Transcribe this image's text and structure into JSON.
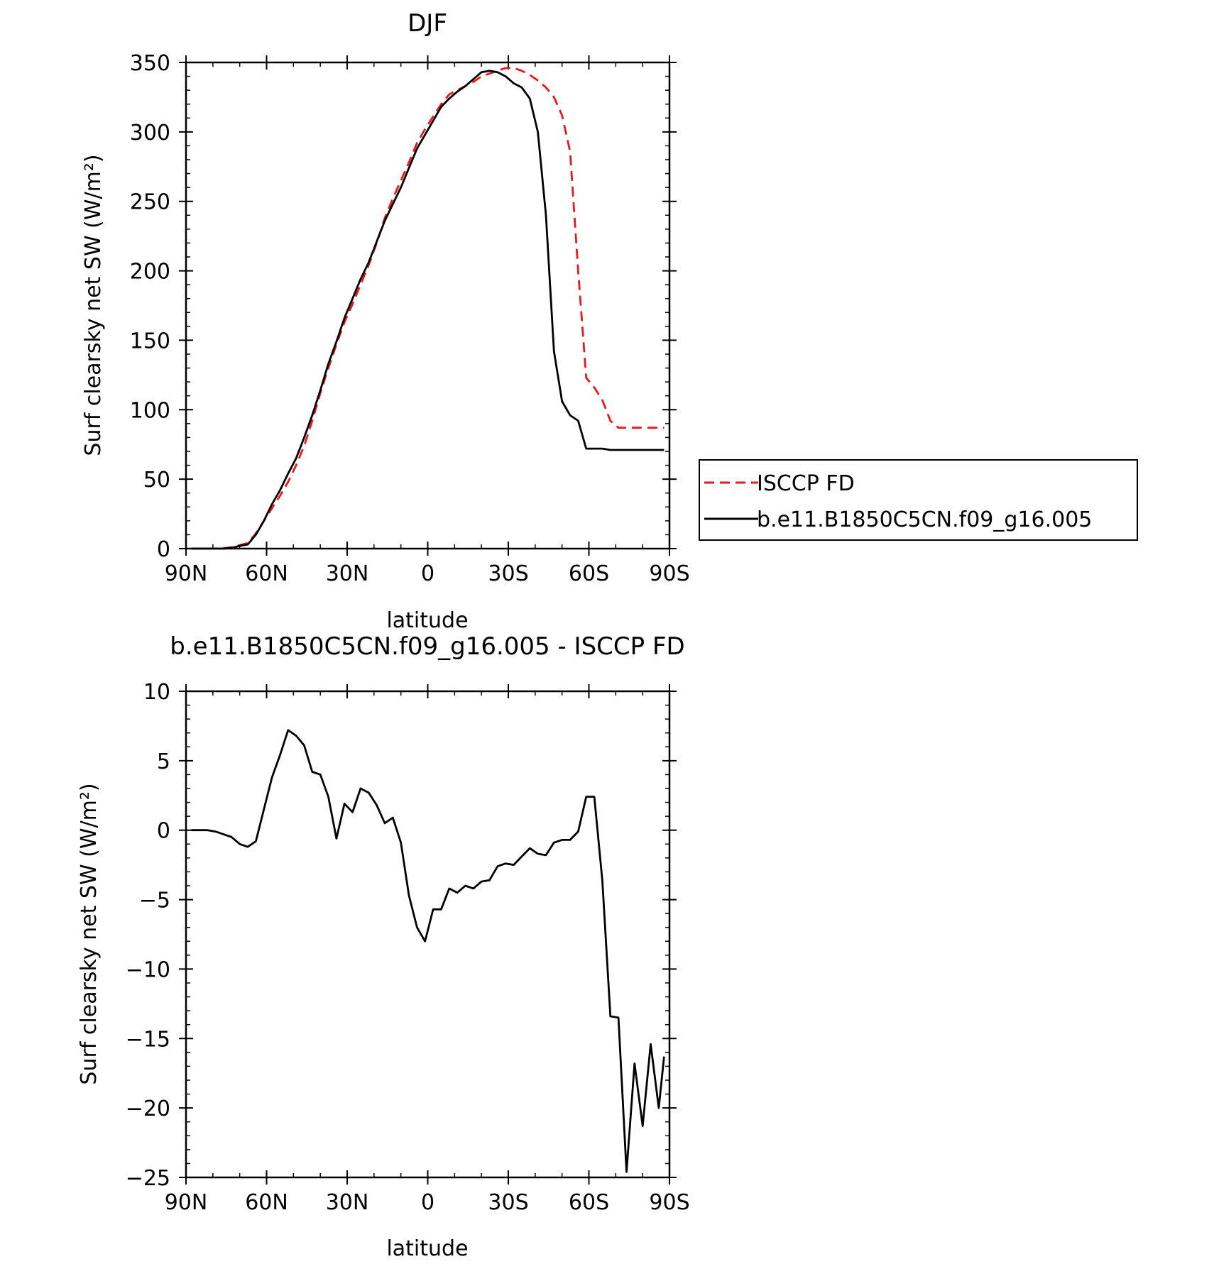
{
  "colors": {
    "model": "#000000",
    "obs": "#e8191c"
  },
  "chart_data": [
    {
      "type": "line",
      "title": "DJF",
      "xlabel": "latitude",
      "ylabel": "Surf clearsky net SW (W/m²)",
      "xlim": [
        -90,
        90
      ],
      "ylim": [
        0,
        350
      ],
      "xticks": [
        -90,
        -60,
        -30,
        0,
        30,
        60,
        90
      ],
      "xticklabels": [
        "90N",
        "60N",
        "30N",
        "0",
        "30S",
        "60S",
        "90S"
      ],
      "yticks": [
        0,
        50,
        100,
        150,
        200,
        250,
        300,
        350
      ],
      "yticklabels": [
        "0",
        "50",
        "100",
        "150",
        "200",
        "250",
        "300",
        "350"
      ],
      "legend_position": "right",
      "x": [
        -88,
        -85,
        -82,
        -79,
        -76,
        -73,
        -70,
        -67,
        -64,
        -61,
        -58,
        -55,
        -52,
        -49,
        -46,
        -43,
        -40,
        -37,
        -34,
        -31,
        -28,
        -25,
        -22,
        -19,
        -16,
        -13,
        -10,
        -7,
        -4,
        -1,
        2,
        5,
        8,
        11,
        14,
        17,
        20,
        23,
        26,
        29,
        32,
        35,
        38,
        41,
        44,
        47,
        50,
        53,
        56,
        59,
        62,
        65,
        68,
        71,
        74,
        77,
        80,
        83,
        86,
        88
      ],
      "series": [
        {
          "name": "ISCCP FD",
          "style": "dashed",
          "color": "#e8191c",
          "values": [
            0,
            0,
            0,
            0,
            0.3,
            1,
            2.5,
            4,
            11,
            20,
            29,
            38,
            48,
            60,
            74,
            92,
            112,
            130,
            147,
            163,
            176,
            190,
            204,
            220,
            238,
            252,
            265,
            278,
            292,
            302,
            311,
            320,
            327,
            330,
            333,
            336,
            340,
            342,
            344,
            346,
            346,
            344,
            341,
            337,
            332,
            325,
            312,
            286,
            200,
            123,
            116,
            107,
            92,
            87,
            87,
            87,
            87,
            87,
            87,
            87
          ]
        },
        {
          "name": "b.e11.B1850C5CN.f09_g16.005",
          "style": "solid",
          "color": "#000000",
          "values": [
            0,
            0,
            0,
            0,
            0,
            0.5,
            2,
            3,
            10,
            20,
            32,
            42,
            54,
            65,
            80,
            96,
            114,
            133,
            149,
            166,
            180,
            194,
            206,
            221,
            236,
            248,
            260,
            274,
            288,
            298,
            308,
            318,
            324,
            329,
            333,
            338,
            343,
            344,
            343,
            340,
            335,
            332,
            324,
            300,
            240,
            142,
            106,
            96,
            92,
            72,
            72,
            72,
            71,
            71,
            71,
            71,
            71,
            71,
            71,
            71
          ]
        }
      ]
    },
    {
      "type": "line",
      "title": "b.e11.B1850C5CN.f09_g16.005 - ISCCP FD",
      "xlabel": "latitude",
      "ylabel": "Surf clearsky net SW (W/m²)",
      "xlim": [
        -90,
        90
      ],
      "ylim": [
        -25,
        10
      ],
      "xticks": [
        -90,
        -60,
        -30,
        0,
        30,
        60,
        90
      ],
      "xticklabels": [
        "90N",
        "60N",
        "30N",
        "0",
        "30S",
        "60S",
        "90S"
      ],
      "yticks": [
        -25,
        -20,
        -15,
        -10,
        -5,
        0,
        5,
        10
      ],
      "yticklabels": [
        "−25",
        "−20",
        "−15",
        "−10",
        "−5",
        "0",
        "5",
        "10"
      ],
      "x": [
        -88,
        -85,
        -82,
        -79,
        -76,
        -73,
        -70,
        -67,
        -64,
        -61,
        -58,
        -55,
        -52,
        -49,
        -46,
        -43,
        -40,
        -37,
        -34,
        -31,
        -28,
        -25,
        -22,
        -19,
        -16,
        -13,
        -10,
        -7,
        -4,
        -1,
        2,
        5,
        8,
        11,
        14,
        17,
        20,
        23,
        26,
        29,
        32,
        35,
        38,
        41,
        44,
        47,
        50,
        53,
        56,
        59,
        62,
        65,
        68,
        71,
        74,
        77,
        80,
        83,
        86,
        88
      ],
      "series": [
        {
          "style": "solid",
          "color": "#000000",
          "values": [
            0,
            0,
            0,
            -0.1,
            -0.3,
            -0.5,
            -1.0,
            -1.2,
            -0.8,
            1.5,
            3.8,
            5.4,
            7.2,
            6.8,
            6.1,
            4.2,
            4.0,
            2.4,
            -0.6,
            1.9,
            1.3,
            3.0,
            2.7,
            1.8,
            0.5,
            0.9,
            -0.9,
            -4.7,
            -7.0,
            -8.0,
            -5.7,
            -5.7,
            -4.2,
            -4.5,
            -4.0,
            -4.2,
            -3.7,
            -3.6,
            -2.6,
            -2.4,
            -2.5,
            -1.9,
            -1.3,
            -1.7,
            -1.8,
            -0.9,
            -0.7,
            -0.7,
            -0.1,
            2.4,
            2.4,
            -3.6,
            -13.4,
            -13.5,
            -24.6,
            -16.8,
            -21.3,
            -15.4,
            -20.0,
            -16.3
          ]
        }
      ]
    }
  ]
}
